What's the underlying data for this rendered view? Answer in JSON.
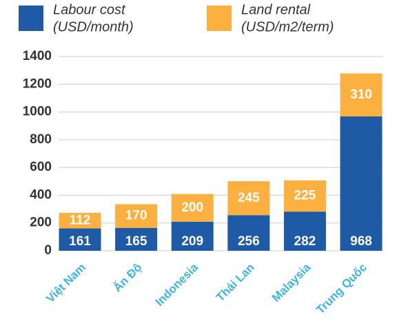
{
  "chart_data": {
    "type": "stacked_bar",
    "categories": [
      "Việt Nam",
      "Ấn Độ",
      "Indonesia",
      "Thái Lan",
      "Malaysia",
      "Trung Quốc"
    ],
    "series": [
      {
        "name": "Labour cost",
        "unit": "(USD/month)",
        "color": "#1f5aa6",
        "values": [
          161,
          165,
          209,
          256,
          282,
          968
        ]
      },
      {
        "name": "Land rental",
        "unit": "(USD/m2/term)",
        "color": "#fbb040",
        "values": [
          112,
          170,
          200,
          245,
          225,
          310
        ]
      }
    ],
    "ylim": [
      0,
      1400
    ],
    "yticks": [
      0,
      200,
      400,
      600,
      800,
      1000,
      1200,
      1400
    ],
    "grid": true
  }
}
